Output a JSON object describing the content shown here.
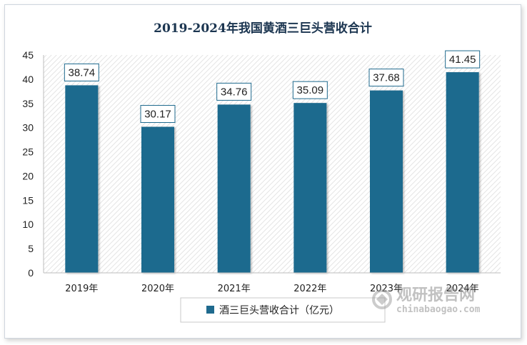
{
  "chart_data": {
    "type": "bar",
    "title": "2019-2024年我国黄酒三巨头营收合计",
    "categories": [
      "2019年",
      "2020年",
      "2021年",
      "2022年",
      "2023年",
      "2024年"
    ],
    "series": [
      {
        "name": "酒三巨头营收合计（亿元）",
        "values": [
          38.74,
          30.17,
          34.76,
          35.09,
          37.68,
          41.45
        ]
      }
    ],
    "ylim": [
      0,
      45
    ],
    "yticks": [
      0,
      5,
      10,
      15,
      20,
      25,
      30,
      35,
      40,
      45
    ],
    "grid": false,
    "legend_position": "bottom",
    "bar_color": "#1f6a8e"
  },
  "watermark": {
    "brand": "观研报告网",
    "url": "chinabaogao.com"
  }
}
